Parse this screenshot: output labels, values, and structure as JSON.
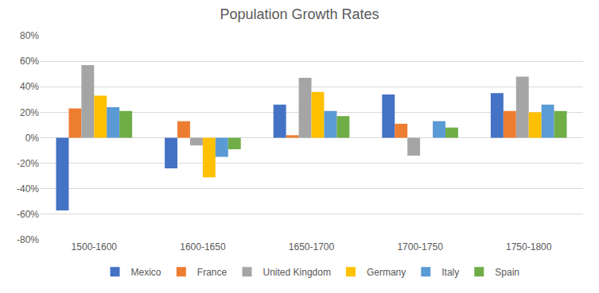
{
  "chart_data": {
    "type": "bar",
    "title": "Population Growth Rates",
    "categories": [
      "1500-1600",
      "1600-1650",
      "1650-1700",
      "1700-1750",
      "1750-1800"
    ],
    "series": [
      {
        "name": "Mexico",
        "color": "#4472c4",
        "values": [
          -57,
          -24,
          26,
          34,
          35
        ]
      },
      {
        "name": "France",
        "color": "#ed7d31",
        "values": [
          23,
          13,
          2,
          11,
          21
        ]
      },
      {
        "name": "United Kingdom",
        "color": "#a5a5a5",
        "values": [
          57,
          -6,
          47,
          -14,
          48
        ]
      },
      {
        "name": "Germany",
        "color": "#ffc000",
        "values": [
          33,
          -31,
          36,
          null,
          20
        ]
      },
      {
        "name": "Italy",
        "color": "#5b9bd5",
        "values": [
          24,
          -15,
          21,
          13,
          26
        ]
      },
      {
        "name": "Spain",
        "color": "#70ad47",
        "values": [
          21,
          -9,
          17,
          8,
          21
        ]
      }
    ],
    "ylim": [
      -80,
      80
    ],
    "yticks": [
      {
        "value": -80,
        "label": "-80%"
      },
      {
        "value": -60,
        "label": "-60%"
      },
      {
        "value": -40,
        "label": "-40%"
      },
      {
        "value": -20,
        "label": "-20%"
      },
      {
        "value": 0,
        "label": "0%"
      },
      {
        "value": 20,
        "label": "20%"
      },
      {
        "value": 40,
        "label": "40%"
      },
      {
        "value": 60,
        "label": "60%"
      },
      {
        "value": 80,
        "label": "80%"
      }
    ],
    "grid": true,
    "legend": "bottom"
  }
}
